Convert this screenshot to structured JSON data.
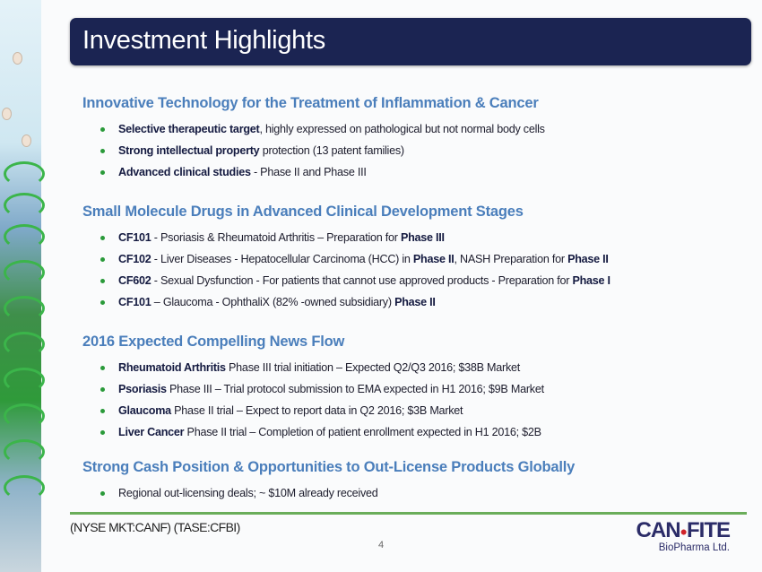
{
  "title": "Investment Highlights",
  "sections": [
    {
      "heading": "Innovative Technology for the Treatment of Inflammation & Cancer",
      "bullets": [
        [
          {
            "b": true,
            "t": "Selective therapeutic target"
          },
          {
            "b": false,
            "t": ", highly expressed on pathological but not normal body cells"
          }
        ],
        [
          {
            "b": true,
            "t": "Strong intellectual property"
          },
          {
            "b": false,
            "t": " protection (13 patent families)"
          }
        ],
        [
          {
            "b": true,
            "t": "Advanced clinical studies"
          },
          {
            "b": false,
            "t": " - Phase II and Phase III"
          }
        ]
      ]
    },
    {
      "heading": "Small Molecule Drugs in Advanced Clinical Development  Stages",
      "bullets": [
        [
          {
            "b": true,
            "t": "CF101"
          },
          {
            "b": false,
            "t": " - Psoriasis & Rheumatoid Arthritis – Preparation for "
          },
          {
            "b": true,
            "t": "Phase III"
          }
        ],
        [
          {
            "b": true,
            "t": "CF102"
          },
          {
            "b": false,
            "t": " - Liver Diseases -  Hepatocellular Carcinoma (HCC) in "
          },
          {
            "b": true,
            "t": "Phase II"
          },
          {
            "b": false,
            "t": ", NASH Preparation for "
          },
          {
            "b": true,
            "t": "Phase II"
          }
        ],
        [
          {
            "b": true,
            "t": "CF602"
          },
          {
            "b": false,
            "t": " - Sexual Dysfunction - For patients that cannot use approved products - Preparation for "
          },
          {
            "b": true,
            "t": "Phase I"
          }
        ],
        [
          {
            "b": true,
            "t": "CF101"
          },
          {
            "b": false,
            "t": " – Glaucoma - OphthaliX (82% -owned subsidiary) "
          },
          {
            "b": true,
            "t": "Phase II"
          }
        ]
      ]
    },
    {
      "heading": "2016  Expected Compelling News Flow",
      "bullets": [
        [
          {
            "b": true,
            "t": "Rheumatoid Arthritis"
          },
          {
            "b": false,
            "t": " Phase III trial initiation – Expected  Q2/Q3 2016; $38B Market"
          }
        ],
        [
          {
            "b": true,
            "t": "Psoriasis"
          },
          {
            "b": false,
            "t": " Phase III – Trial protocol submission to EMA expected in H1 2016; $9B Market"
          }
        ],
        [
          {
            "b": true,
            "t": "Glaucoma"
          },
          {
            "b": false,
            "t": " Phase II trial – Expect to report data in Q2 2016; $3B Market"
          }
        ],
        [
          {
            "b": true,
            "t": "Liver Cancer"
          },
          {
            "b": false,
            "t": " Phase II trial – Completion of patient enrollment expected in H1 2016; $2B"
          }
        ]
      ]
    },
    {
      "heading": "Strong  Cash Position & Opportunities to Out-License Products Globally",
      "bullets": [
        [
          {
            "b": false,
            "t": "Regional out-licensing deals; ~ $10M already received"
          }
        ]
      ]
    }
  ],
  "footer": {
    "ticker": "(NYSE MKT:CANF)  (TASE:CFBI)",
    "page_number": "4",
    "logo_left": "CAN",
    "logo_right": "FITE",
    "logo_sub": "BioPharma Ltd."
  },
  "colors": {
    "title_bg": "#1b2452",
    "heading": "#4a7ebb",
    "bullet": "#2a9a3a",
    "rule": "#6aad5a"
  }
}
